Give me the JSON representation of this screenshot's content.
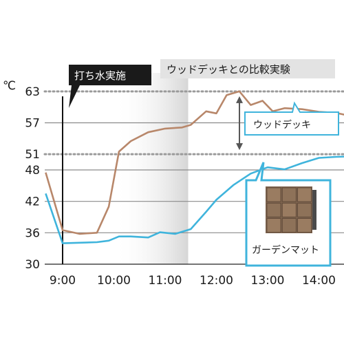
{
  "chart_data": {
    "type": "line",
    "title": "ウッドデッキとの比較実験",
    "ylabel": "℃",
    "xlabel": "",
    "ylim": [
      30,
      66
    ],
    "xlim": [
      8.6,
      15.0
    ],
    "y_ticks": [
      {
        "value": 30,
        "label": "30"
      },
      {
        "value": 36,
        "label": "36"
      },
      {
        "value": 42,
        "label": "42"
      },
      {
        "value": 48,
        "label": "48"
      },
      {
        "value": 51,
        "label": "51"
      },
      {
        "value": 57,
        "label": "57"
      },
      {
        "value": 63,
        "label": "63"
      }
    ],
    "x_ticks": [
      {
        "value": 9,
        "label": "9:00"
      },
      {
        "value": 10,
        "label": "10:00"
      },
      {
        "value": 11,
        "label": "11:00"
      },
      {
        "value": 12,
        "label": "12:00"
      },
      {
        "value": 13,
        "label": "13:00"
      },
      {
        "value": 14,
        "label": "14:00"
      }
    ],
    "dotted_lines": [
      63,
      51
    ],
    "shaded_region": {
      "x_start": 10.0,
      "x_end": 11.45
    },
    "annotation": {
      "x": 9.0,
      "text": "打ち水実施"
    },
    "difference_arrow": {
      "x": 12.45,
      "y_top": 63,
      "y_bottom": 51
    },
    "series": [
      {
        "name": "ウッドデッキ",
        "color": "#b8876a",
        "x": [
          8.67,
          9.0,
          9.33,
          9.67,
          9.9,
          10.1,
          10.33,
          10.67,
          11.0,
          11.33,
          11.5,
          11.8,
          12.0,
          12.2,
          12.45,
          12.67,
          12.9,
          13.1,
          13.33,
          13.67,
          14.0,
          14.33,
          14.67,
          15.0
        ],
        "y": [
          47.5,
          36.5,
          35.8,
          36.0,
          41.0,
          51.5,
          53.5,
          55.2,
          55.9,
          56.1,
          56.6,
          59.2,
          58.8,
          62.3,
          63.0,
          60.4,
          61.2,
          59.2,
          59.8,
          59.6,
          59.1,
          58.9,
          58.2,
          58.0
        ]
      },
      {
        "name": "ガーデンマット",
        "color": "#3fb4dc",
        "x": [
          8.67,
          9.0,
          9.33,
          9.67,
          9.9,
          10.1,
          10.33,
          10.67,
          10.9,
          11.2,
          11.5,
          11.8,
          12.0,
          12.33,
          12.67,
          13.0,
          13.33,
          13.67,
          14.0,
          14.33,
          14.67,
          15.0
        ],
        "y": [
          43.5,
          34.0,
          34.1,
          34.2,
          34.5,
          35.3,
          35.3,
          35.1,
          36.1,
          35.8,
          36.7,
          40.0,
          42.3,
          45.1,
          47.3,
          48.5,
          48.1,
          49.3,
          50.3,
          50.5,
          50.6,
          51.0
        ]
      }
    ],
    "labels": {
      "wood_deck": "ウッドデッキ",
      "garden_mat": "ガーデンマット"
    }
  }
}
